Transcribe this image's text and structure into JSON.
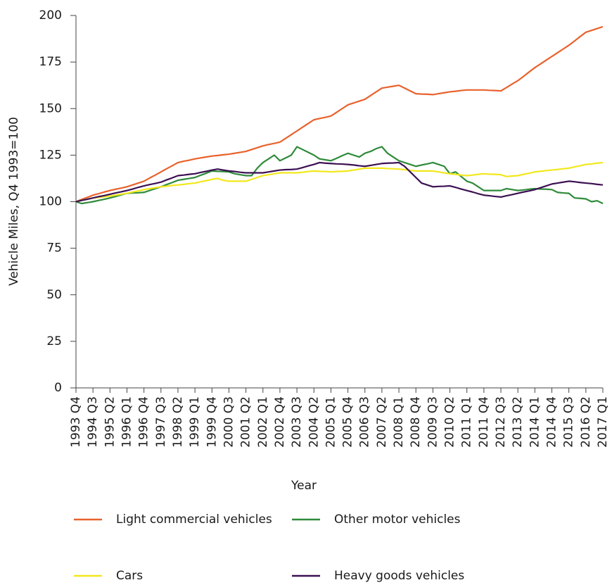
{
  "chart_data": {
    "type": "line",
    "y_label": "Vehicle Miles, Q4 1993=100",
    "x_label": "Year",
    "categories": [
      "1993 Q4",
      null,
      null,
      "1994 Q3",
      null,
      null,
      "1995 Q2",
      null,
      null,
      "1996 Q1",
      null,
      null,
      "1996 Q4",
      null,
      null,
      "1997 Q3",
      null,
      null,
      "1998 Q2",
      null,
      null,
      "1999 Q1",
      null,
      null,
      "1999 Q4",
      null,
      null,
      "2000 Q3",
      null,
      null,
      "2001 Q2",
      null,
      null,
      "2002 Q1",
      null,
      null,
      "2002 Q4",
      null,
      null,
      "2003 Q3",
      null,
      null,
      "2004 Q2",
      null,
      null,
      "2005 Q1",
      null,
      null,
      "2005 Q4",
      null,
      null,
      "2006 Q3",
      null,
      null,
      "2007 Q2",
      null,
      null,
      "2008 Q1",
      null,
      null,
      "2008 Q4",
      null,
      null,
      "2009 Q3",
      null,
      null,
      "2010 Q2",
      null,
      null,
      "2011 Q1",
      null,
      null,
      "2011 Q4",
      null,
      null,
      "2012 Q3",
      null,
      null,
      "2013 Q2",
      null,
      null,
      "2014 Q1",
      null,
      null,
      "2014 Q4",
      null,
      null,
      "2015 Q3",
      null,
      null,
      "2016 Q2",
      null,
      null,
      "2017 Q1"
    ],
    "series": [
      {
        "name": "Light commercial vehicles",
        "color": "#e8622c",
        "values": [
          100,
          101.2,
          102.3,
          103.5,
          104.3,
          105.2,
          106,
          106.7,
          107.3,
          108,
          109,
          110,
          111,
          112.7,
          114.3,
          116,
          117.7,
          119.3,
          121,
          121.7,
          122.3,
          123,
          123.5,
          124,
          124.5,
          124.8,
          125.2,
          125.5,
          126,
          126.5,
          127,
          128,
          129,
          130,
          130.7,
          131.3,
          132,
          134,
          136,
          138,
          140,
          142,
          144,
          144.7,
          145.3,
          146,
          148,
          150,
          152,
          153,
          154,
          155,
          157,
          159,
          161,
          161.5,
          162,
          162.5,
          161,
          159.5,
          158,
          157.8,
          157.7,
          157.5,
          158,
          158.5,
          159,
          159.3,
          159.7,
          160,
          160,
          160,
          160,
          159.8,
          159.7,
          159.5,
          161.3,
          163.2,
          165,
          167.3,
          169.7,
          172,
          174,
          176,
          178,
          180,
          182,
          184,
          186.3,
          188.7,
          191,
          192,
          193,
          194
        ]
      },
      {
        "name": "Other motor vehicles",
        "color": "#2e8b3a",
        "values": [
          100,
          99,
          99.5,
          100,
          100.7,
          101.3,
          102,
          102.8,
          103.7,
          104.5,
          104.7,
          104.8,
          105,
          106,
          107,
          108,
          109.2,
          110.3,
          111.5,
          112,
          112.5,
          113,
          114.2,
          115.3,
          116.5,
          116.3,
          116.2,
          116,
          115,
          114.5,
          114,
          114,
          118,
          121,
          123,
          125,
          122,
          123.5,
          125,
          129.5,
          128,
          126.5,
          125,
          123,
          122.5,
          122,
          123.3,
          124.7,
          126,
          125,
          124,
          126,
          127,
          128.5,
          129.5,
          126,
          124,
          122,
          121,
          120,
          119,
          119.7,
          120.3,
          121,
          120,
          119,
          115,
          116,
          113.5,
          111,
          110,
          108,
          106,
          106,
          106,
          106,
          107,
          106.5,
          106,
          106.3,
          106.7,
          107,
          106.8,
          106.7,
          106.5,
          105,
          104.7,
          104.5,
          102,
          101.8,
          101.5,
          100,
          100.5,
          99
        ]
      },
      {
        "name": "Cars",
        "color": "#f2e81c",
        "values": [
          100,
          100.7,
          101.3,
          102,
          102.3,
          102.7,
          103,
          103.5,
          104,
          104.5,
          105.2,
          105.8,
          106.5,
          107,
          107.5,
          108,
          108.3,
          108.7,
          109,
          109.3,
          109.7,
          110,
          110.7,
          111.3,
          112,
          112.5,
          111.5,
          111,
          111,
          111,
          111,
          112,
          113,
          114,
          114.5,
          115,
          115.5,
          115.5,
          115.5,
          115.5,
          115.8,
          116.2,
          116.5,
          116.3,
          116.2,
          116,
          116.2,
          116.3,
          116.5,
          117,
          117.5,
          118,
          118,
          118,
          118,
          117.8,
          117.7,
          117.5,
          117.2,
          116.8,
          116.5,
          116.5,
          116.5,
          116.5,
          116,
          115.5,
          115,
          114.7,
          114.3,
          114,
          114.3,
          114.7,
          115,
          114.8,
          114.7,
          114.5,
          113.5,
          113.8,
          114,
          114.7,
          115.3,
          116,
          116.3,
          116.7,
          117,
          117.3,
          117.7,
          118,
          118.7,
          119.3,
          120,
          120.3,
          120.7,
          121
        ]
      },
      {
        "name": "Heavy goods vehicles",
        "color": "#3c1053",
        "values": [
          100,
          100.7,
          101.3,
          102,
          102.7,
          103.3,
          104,
          104.7,
          105.3,
          106,
          106.8,
          107.7,
          108.5,
          109.2,
          109.8,
          110.5,
          111.7,
          112.8,
          114,
          114.3,
          114.7,
          115,
          115.7,
          116.3,
          117,
          117.5,
          117,
          116.5,
          116.2,
          115.8,
          115.5,
          115.5,
          115.5,
          115.5,
          116,
          116.5,
          117,
          117.2,
          117.3,
          117.5,
          118.3,
          119.2,
          120,
          121,
          120.7,
          120.5,
          120.3,
          120.2,
          120,
          119.7,
          119.3,
          119,
          119.5,
          120,
          120.5,
          120.7,
          120.8,
          121,
          119,
          116,
          113,
          110,
          109,
          108,
          108.2,
          108.3,
          108.5,
          107.7,
          106.8,
          106,
          105.2,
          104.3,
          103.5,
          103.2,
          102.8,
          102.5,
          103.2,
          103.8,
          104.5,
          105.2,
          105.8,
          106.5,
          107.5,
          108.5,
          109.5,
          110,
          110.5,
          111,
          110.7,
          110.3,
          110,
          109.7,
          109.3,
          109
        ]
      }
    ],
    "ylim": [
      0,
      200
    ],
    "yticks": [
      0,
      25,
      50,
      75,
      100,
      125,
      150,
      175,
      200
    ],
    "grid": false
  }
}
